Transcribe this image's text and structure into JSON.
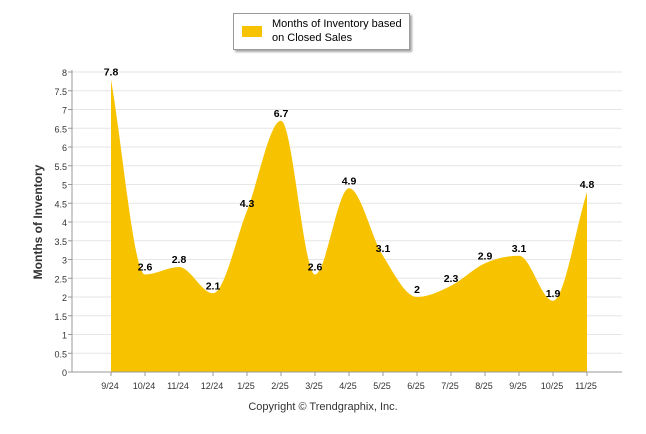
{
  "chart_data": {
    "type": "area",
    "title": "",
    "xlabel": "",
    "ylabel": "Months of Inventory",
    "ylim": [
      0,
      8
    ],
    "yticks": [
      0,
      0.5,
      1,
      1.5,
      2,
      2.5,
      3,
      3.5,
      4,
      4.5,
      5,
      5.5,
      6,
      6.5,
      7,
      7.5,
      8
    ],
    "ytick_labels": [
      "0",
      "0.5",
      "1",
      "1.5",
      "2",
      "2.5",
      "3",
      "3.5",
      "4",
      "4.5",
      "5",
      "5.5",
      "6",
      "6.5",
      "7",
      "7.5",
      "8"
    ],
    "categories": [
      "9/24",
      "10/24",
      "11/24",
      "12/24",
      "1/25",
      "2/25",
      "3/25",
      "4/25",
      "5/25",
      "6/25",
      "7/25",
      "8/25",
      "9/25",
      "10/25",
      "11/25"
    ],
    "series": [
      {
        "name": "Months of Inventory based on Closed Sales",
        "values": [
          7.8,
          2.6,
          2.8,
          2.1,
          4.3,
          6.7,
          2.6,
          4.9,
          3.1,
          2,
          2.3,
          2.9,
          3.1,
          1.9,
          4.8
        ],
        "labels": [
          "7.8",
          "2.6",
          "2.8",
          "2.1",
          "4.3",
          "6.7",
          "2.6",
          "4.9",
          "3.1",
          "2",
          "2.3",
          "2.9",
          "3.1",
          "1.9",
          "4.8"
        ]
      }
    ],
    "legend": {
      "position": "top-center",
      "label": "Months of Inventory based on Closed Sales"
    },
    "grid": true,
    "colors": {
      "fill": "#F7C300",
      "grid": "#e6e6e6",
      "axis": "#999999"
    }
  },
  "footer": {
    "copyright": "Copyright © Trendgraphix, Inc."
  }
}
